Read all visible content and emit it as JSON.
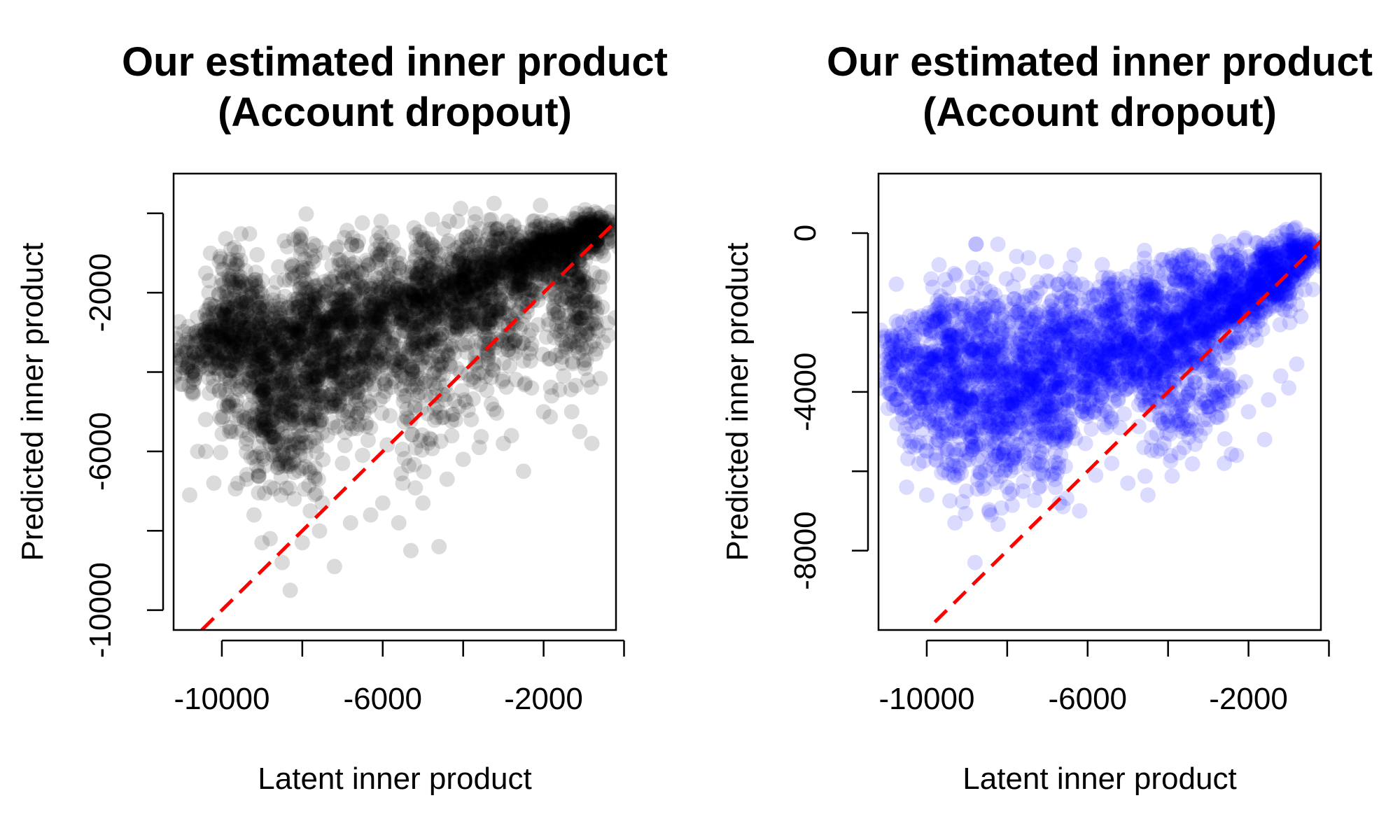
{
  "chart_data": [
    {
      "type": "scatter",
      "title": [
        "Our estimated inner product",
        "(Account dropout)"
      ],
      "xlabel": "Latent inner product",
      "ylabel": "Predicted inner product",
      "xlim": [
        -11200,
        -200
      ],
      "ylim": [
        -10500,
        1000
      ],
      "xticks": [
        -10000,
        -8000,
        -6000,
        -4000,
        -2000,
        0
      ],
      "xtick_labels": [
        "-10000",
        "",
        "-6000",
        "",
        "-2000",
        ""
      ],
      "yticks": [
        -10000,
        -8000,
        -6000,
        -4000,
        -2000,
        0
      ],
      "ytick_labels": [
        "-10000",
        "",
        "-6000",
        "",
        "-2000",
        ""
      ],
      "point_color": "#000000",
      "reference_line": {
        "from": [
          -10500,
          -10500
        ],
        "to": [
          0,
          0
        ],
        "color": "#ff0000",
        "style": "dashed"
      },
      "cloud": [
        [
          -10800,
          -3700,
          500
        ],
        [
          -10400,
          -3300,
          500
        ],
        [
          -10000,
          -3100,
          500
        ],
        [
          -9500,
          -3000,
          500
        ],
        [
          -9000,
          -2900,
          500
        ],
        [
          -8500,
          -3000,
          450
        ],
        [
          -8000,
          -2900,
          450
        ],
        [
          -7500,
          -2800,
          400
        ],
        [
          -7000,
          -2700,
          400
        ],
        [
          -6500,
          -2600,
          380
        ],
        [
          -6000,
          -2400,
          350
        ],
        [
          -5500,
          -2300,
          330
        ],
        [
          -5000,
          -2100,
          310
        ],
        [
          -4500,
          -1900,
          290
        ],
        [
          -4000,
          -1700,
          270
        ],
        [
          -3500,
          -1500,
          250
        ],
        [
          -3000,
          -1300,
          230
        ],
        [
          -2500,
          -1100,
          210
        ],
        [
          -2000,
          -900,
          190
        ],
        [
          -1500,
          -700,
          170
        ],
        [
          -1000,
          -500,
          150
        ],
        [
          -600,
          -300,
          130
        ],
        [
          -9800,
          -3600,
          800
        ],
        [
          -9200,
          -3700,
          800
        ],
        [
          -8600,
          -3800,
          800
        ],
        [
          -8000,
          -3900,
          800
        ],
        [
          -7400,
          -3800,
          700
        ],
        [
          -6800,
          -3700,
          700
        ],
        [
          -6200,
          -3500,
          650
        ],
        [
          -5600,
          -3300,
          600
        ],
        [
          -5000,
          -3000,
          550
        ],
        [
          -4400,
          -2700,
          500
        ],
        [
          -3800,
          -2400,
          450
        ],
        [
          -3200,
          -2100,
          400
        ],
        [
          -2600,
          -1800,
          350
        ],
        [
          -2000,
          -1500,
          300
        ],
        [
          -1400,
          -1100,
          250
        ],
        [
          -800,
          -700,
          200
        ],
        [
          -9500,
          -4400,
          1000
        ],
        [
          -8900,
          -4800,
          1000
        ],
        [
          -8300,
          -4700,
          1000
        ],
        [
          -7700,
          -4500,
          900
        ],
        [
          -7100,
          -4200,
          800
        ],
        [
          -6500,
          -4000,
          700
        ],
        [
          -9000,
          -5500,
          1200
        ],
        [
          -8400,
          -5200,
          1100
        ],
        [
          -7800,
          -4900,
          1000
        ],
        [
          -10000,
          -2500,
          700
        ],
        [
          -9500,
          -2000,
          600
        ],
        [
          -8000,
          -1800,
          600
        ],
        [
          -7000,
          -1600,
          550
        ],
        [
          -6000,
          -1400,
          500
        ],
        [
          -5000,
          -1300,
          450
        ],
        [
          -4000,
          -1000,
          400
        ],
        [
          -3000,
          -800,
          350
        ],
        [
          -2000,
          -600,
          300
        ],
        [
          -1000,
          -400,
          250
        ],
        [
          -1200,
          -1800,
          500
        ],
        [
          -900,
          -2800,
          700
        ],
        [
          -1500,
          -3000,
          800
        ],
        [
          -2800,
          -3100,
          700
        ],
        [
          -3500,
          -3500,
          800
        ],
        [
          -4500,
          -4200,
          900
        ],
        [
          -5200,
          -4600,
          1000
        ]
      ],
      "points": [
        [
          -10600,
          -6000
        ],
        [
          -10400,
          -6000
        ],
        [
          -10200,
          -6800
        ],
        [
          -9600,
          -6800
        ],
        [
          -9200,
          -7600
        ],
        [
          -9000,
          -8300
        ],
        [
          -8800,
          -8200
        ],
        [
          -8500,
          -8800
        ],
        [
          -8300,
          -9500
        ],
        [
          -8000,
          -8300
        ],
        [
          -7800,
          -7500
        ],
        [
          -7500,
          -7300
        ],
        [
          -7200,
          -8900
        ],
        [
          -6800,
          -7800
        ],
        [
          -6300,
          -7600
        ],
        [
          -6000,
          -7300
        ],
        [
          -5600,
          -7800
        ],
        [
          -5300,
          -8500
        ],
        [
          -5000,
          -7300
        ],
        [
          -4600,
          -8400
        ],
        [
          -4400,
          -6700
        ],
        [
          -4000,
          -6200
        ],
        [
          -3600,
          -5900
        ],
        [
          -3000,
          -5800
        ],
        [
          -2500,
          -6500
        ],
        [
          -2000,
          -5000
        ],
        [
          -1300,
          -5000
        ],
        [
          -1100,
          -5500
        ],
        [
          -800,
          -5800
        ],
        [
          -900,
          -4200
        ],
        [
          -1500,
          -4100
        ],
        [
          -2300,
          -4400
        ],
        [
          -3300,
          -4800
        ],
        [
          -5500,
          -6800
        ],
        [
          -6500,
          -6100
        ],
        [
          -7000,
          -6300
        ],
        [
          -8600,
          -6400
        ],
        [
          -9400,
          -5800
        ],
        [
          -10800,
          -7100
        ],
        [
          -10000,
          -5200
        ],
        [
          -9800,
          -5400
        ],
        [
          -8800,
          -6900
        ],
        [
          -7600,
          -6700
        ],
        [
          -4800,
          -5700
        ],
        [
          -3800,
          -5200
        ],
        [
          -2800,
          -5600
        ],
        [
          -1800,
          -4600
        ],
        [
          -1000,
          -3700
        ],
        [
          -700,
          -2900
        ],
        [
          -600,
          -1600
        ],
        [
          -9000,
          -1700
        ],
        [
          -8000,
          -1500
        ],
        [
          -10300,
          -2300
        ],
        [
          -9600,
          -2200
        ]
      ]
    },
    {
      "type": "scatter",
      "title": [
        "Our estimated inner product",
        "(Account dropout)"
      ],
      "xlabel": "Latent inner product",
      "ylabel": "Predicted inner product",
      "xlim": [
        -11200,
        -200
      ],
      "ylim": [
        -10000,
        1500
      ],
      "xticks": [
        -10000,
        -8000,
        -6000,
        -4000,
        -2000,
        0
      ],
      "xtick_labels": [
        "-10000",
        "",
        "-6000",
        "",
        "-2000",
        ""
      ],
      "yticks": [
        -8000,
        -6000,
        -4000,
        -2000,
        0
      ],
      "ytick_labels": [
        "-8000",
        "",
        "-4000",
        "",
        "0"
      ],
      "point_color": "#0000ff",
      "reference_line": {
        "from": [
          -9800,
          -9800
        ],
        "to": [
          0,
          0
        ],
        "color": "#ff0000",
        "style": "dashed"
      },
      "cloud": [
        [
          -10800,
          -3400,
          600
        ],
        [
          -10400,
          -3300,
          700
        ],
        [
          -10000,
          -3300,
          800
        ],
        [
          -9500,
          -3300,
          800
        ],
        [
          -9000,
          -3300,
          800
        ],
        [
          -8500,
          -3400,
          800
        ],
        [
          -8000,
          -3400,
          800
        ],
        [
          -7500,
          -3400,
          800
        ],
        [
          -7000,
          -3300,
          800
        ],
        [
          -6500,
          -3200,
          700
        ],
        [
          -6000,
          -3100,
          700
        ],
        [
          -5500,
          -2900,
          650
        ],
        [
          -5000,
          -2700,
          600
        ],
        [
          -4500,
          -2500,
          600
        ],
        [
          -4000,
          -2300,
          550
        ],
        [
          -3500,
          -2100,
          500
        ],
        [
          -3000,
          -1900,
          450
        ],
        [
          -2500,
          -1700,
          420
        ],
        [
          -2000,
          -1500,
          380
        ],
        [
          -1500,
          -1200,
          340
        ],
        [
          -1000,
          -900,
          300
        ],
        [
          -600,
          -500,
          250
        ],
        [
          -10200,
          -4300,
          900
        ],
        [
          -9600,
          -4400,
          900
        ],
        [
          -9000,
          -4500,
          900
        ],
        [
          -8400,
          -4500,
          900
        ],
        [
          -7800,
          -4600,
          900
        ],
        [
          -7200,
          -4400,
          800
        ],
        [
          -6600,
          -4100,
          700
        ],
        [
          -6000,
          -3900,
          600
        ],
        [
          -5400,
          -3600,
          550
        ],
        [
          -4800,
          -3300,
          500
        ],
        [
          -4200,
          -3000,
          450
        ],
        [
          -3600,
          -2700,
          420
        ],
        [
          -3000,
          -2400,
          400
        ],
        [
          -2400,
          -2000,
          380
        ],
        [
          -1800,
          -1700,
          350
        ],
        [
          -1200,
          -1300,
          320
        ],
        [
          -9500,
          -2500,
          800
        ],
        [
          -8500,
          -2300,
          700
        ],
        [
          -7500,
          -2200,
          700
        ],
        [
          -6500,
          -2100,
          600
        ],
        [
          -5500,
          -1800,
          500
        ],
        [
          -4500,
          -1500,
          450
        ],
        [
          -3500,
          -1200,
          400
        ],
        [
          -2500,
          -1000,
          350
        ],
        [
          -1500,
          -700,
          300
        ],
        [
          -800,
          -400,
          250
        ],
        [
          -9000,
          -5000,
          1000
        ],
        [
          -8000,
          -5200,
          1000
        ],
        [
          -7000,
          -5000,
          900
        ],
        [
          -4200,
          -4300,
          700
        ],
        [
          -3500,
          -4200,
          700
        ],
        [
          -2800,
          -4000,
          600
        ]
      ],
      "points": [
        [
          -10500,
          -6400
        ],
        [
          -10000,
          -6600
        ],
        [
          -9500,
          -5800
        ],
        [
          -9300,
          -7300
        ],
        [
          -8800,
          -8300
        ],
        [
          -8400,
          -7100
        ],
        [
          -8000,
          -6400
        ],
        [
          -7600,
          -6500
        ],
        [
          -7100,
          -6100
        ],
        [
          -6700,
          -6800
        ],
        [
          -6200,
          -7000
        ],
        [
          -5800,
          -6100
        ],
        [
          -5400,
          -5800
        ],
        [
          -5000,
          -6300
        ],
        [
          -4600,
          -5400
        ],
        [
          -4100,
          -5300
        ],
        [
          -3600,
          -5400
        ],
        [
          -3200,
          -5100
        ],
        [
          -2600,
          -5800
        ],
        [
          -2300,
          -5600
        ],
        [
          -1600,
          -5200
        ],
        [
          -1200,
          -3600
        ],
        [
          -1000,
          -3900
        ],
        [
          -800,
          -3300
        ],
        [
          -700,
          -2100
        ],
        [
          -8600,
          -4100
        ],
        [
          -9800,
          -4900
        ],
        [
          -10900,
          -3700
        ],
        [
          -10700,
          -2300
        ],
        [
          -10300,
          -2600
        ],
        [
          -7800,
          -5900
        ],
        [
          -6500,
          -4200
        ],
        [
          -5200,
          -4900
        ],
        [
          -3000,
          -4700
        ],
        [
          -2000,
          -4500
        ],
        [
          -1500,
          -4200
        ],
        [
          -4500,
          -6600
        ],
        [
          -7200,
          -5500
        ]
      ]
    }
  ]
}
